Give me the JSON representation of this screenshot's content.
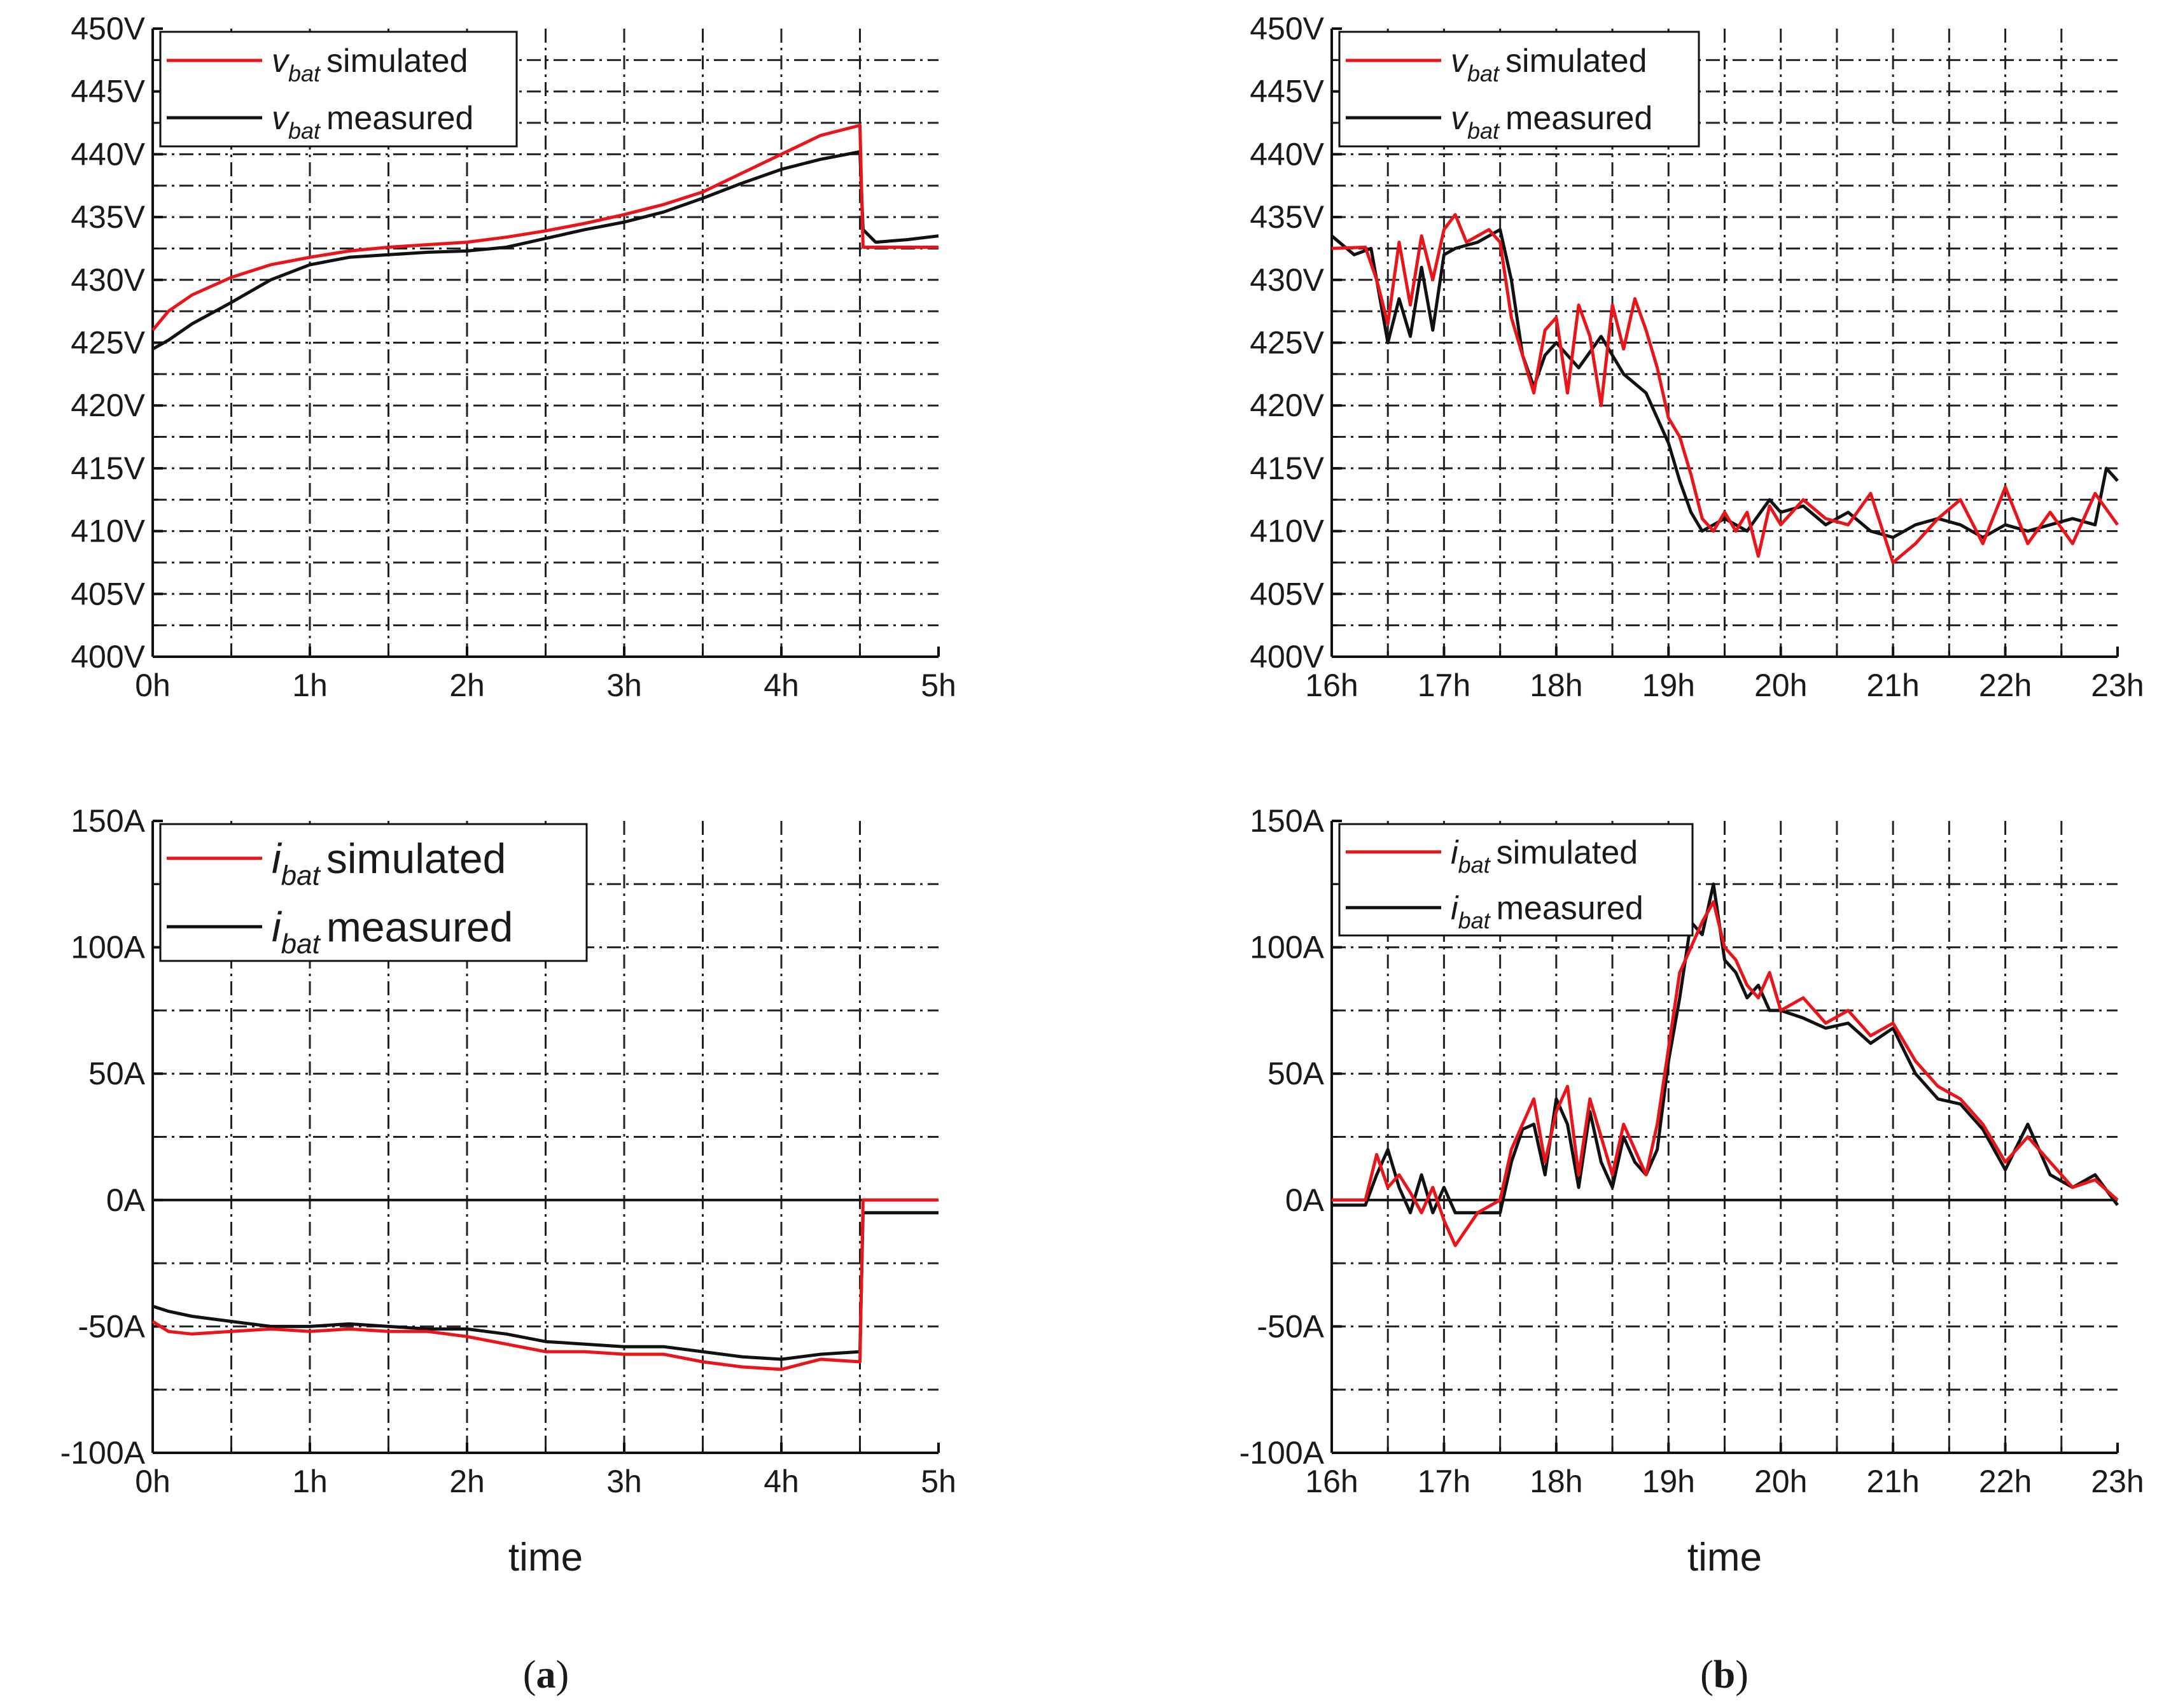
{
  "colors": {
    "simulated": "#e8161b",
    "measured": "#111111",
    "grid": "#222222",
    "axis": "#111111",
    "background": "#ffffff"
  },
  "captions": {
    "a": {
      "open": "(",
      "letter": "a",
      "close": ")"
    },
    "b": {
      "open": "(",
      "letter": "b",
      "close": ")"
    }
  },
  "chart_data": [
    {
      "id": "voltage_a",
      "type": "line",
      "panel": "a",
      "xlabel": "",
      "ylabel": "",
      "xlim": [
        0,
        5
      ],
      "ylim": [
        400,
        450
      ],
      "x_ticks": [
        0,
        1,
        2,
        3,
        4,
        5
      ],
      "x_tick_labels": [
        "0h",
        "1h",
        "2h",
        "3h",
        "4h",
        "5h"
      ],
      "y_ticks": [
        400,
        405,
        410,
        415,
        420,
        425,
        430,
        435,
        440,
        445,
        450
      ],
      "y_tick_labels": [
        "400V",
        "405V",
        "410V",
        "415V",
        "420V",
        "425V",
        "430V",
        "435V",
        "440V",
        "445V",
        "450V"
      ],
      "zero_line": null,
      "grid": true,
      "legend_position": "top-left",
      "series": [
        {
          "name": "simulated",
          "legend_var": "v",
          "legend_sub": "bat",
          "legend_label": "simulated",
          "color": "#e8161b",
          "x": [
            0,
            0.1,
            0.25,
            0.5,
            0.75,
            1.0,
            1.25,
            1.5,
            1.75,
            2.0,
            2.25,
            2.5,
            2.75,
            3.0,
            3.25,
            3.5,
            3.75,
            4.0,
            4.25,
            4.5,
            4.52,
            4.6,
            5.0
          ],
          "values": [
            426.0,
            427.5,
            428.8,
            430.2,
            431.2,
            431.8,
            432.3,
            432.6,
            432.8,
            433.0,
            433.4,
            433.9,
            434.5,
            435.2,
            436.0,
            437.0,
            438.5,
            440.0,
            441.5,
            442.3,
            432.6,
            432.6,
            432.6
          ]
        },
        {
          "name": "measured",
          "legend_var": "v",
          "legend_sub": "bat",
          "legend_label": "measured",
          "color": "#111111",
          "x": [
            0,
            0.1,
            0.25,
            0.5,
            0.75,
            1.0,
            1.25,
            1.5,
            1.75,
            2.0,
            2.25,
            2.5,
            2.75,
            3.0,
            3.25,
            3.5,
            3.75,
            4.0,
            4.25,
            4.5,
            4.52,
            4.6,
            4.8,
            5.0
          ],
          "values": [
            424.5,
            425.2,
            426.5,
            428.2,
            430.0,
            431.2,
            431.8,
            432.0,
            432.2,
            432.3,
            432.6,
            433.3,
            434.0,
            434.6,
            435.4,
            436.5,
            437.7,
            438.8,
            439.6,
            440.2,
            434.0,
            433.0,
            433.2,
            433.5
          ]
        }
      ]
    },
    {
      "id": "voltage_b",
      "type": "line",
      "panel": "b",
      "xlabel": "",
      "ylabel": "",
      "xlim": [
        16,
        23
      ],
      "ylim": [
        400,
        450
      ],
      "x_ticks": [
        16,
        17,
        18,
        19,
        20,
        21,
        22,
        23
      ],
      "x_tick_labels": [
        "16h",
        "17h",
        "18h",
        "19h",
        "20h",
        "21h",
        "22h",
        "23h"
      ],
      "y_ticks": [
        400,
        405,
        410,
        415,
        420,
        425,
        430,
        435,
        440,
        445,
        450
      ],
      "y_tick_labels": [
        "400V",
        "405V",
        "410V",
        "415V",
        "420V",
        "425V",
        "430V",
        "435V",
        "440V",
        "445V",
        "450V"
      ],
      "zero_line": null,
      "grid": true,
      "legend_position": "top-left",
      "series": [
        {
          "name": "simulated",
          "legend_var": "v",
          "legend_sub": "bat",
          "legend_label": "simulated",
          "color": "#e8161b",
          "x": [
            16,
            16.3,
            16.4,
            16.5,
            16.6,
            16.7,
            16.8,
            16.9,
            17.0,
            17.1,
            17.2,
            17.4,
            17.5,
            17.6,
            17.7,
            17.8,
            17.9,
            18.0,
            18.1,
            18.2,
            18.3,
            18.4,
            18.5,
            18.6,
            18.7,
            18.8,
            18.9,
            19.0,
            19.1,
            19.2,
            19.3,
            19.4,
            19.5,
            19.6,
            19.7,
            19.8,
            19.9,
            20.0,
            20.2,
            20.4,
            20.6,
            20.8,
            21.0,
            21.2,
            21.4,
            21.6,
            21.8,
            22.0,
            22.2,
            22.4,
            22.6,
            22.8,
            23.0
          ],
          "values": [
            432.5,
            432.6,
            430.0,
            426.5,
            433.0,
            428.0,
            433.5,
            430.0,
            434.0,
            435.2,
            433.0,
            434.0,
            433.0,
            427.0,
            424.0,
            421.0,
            426.0,
            427.0,
            421.0,
            428.0,
            425.5,
            420.0,
            428.0,
            424.5,
            428.5,
            426.0,
            423.0,
            419.0,
            417.5,
            414.5,
            411.0,
            410.0,
            411.5,
            410.0,
            411.5,
            408.0,
            412.0,
            410.5,
            412.5,
            411.0,
            410.5,
            413.0,
            407.5,
            409.0,
            411.0,
            412.5,
            409.0,
            413.5,
            409.0,
            411.5,
            409.0,
            413.0,
            410.5
          ]
        },
        {
          "name": "measured",
          "legend_var": "v",
          "legend_sub": "bat",
          "legend_label": "measured",
          "color": "#111111",
          "x": [
            16,
            16.2,
            16.35,
            16.5,
            16.6,
            16.7,
            16.8,
            16.9,
            17.0,
            17.1,
            17.3,
            17.5,
            17.6,
            17.7,
            17.8,
            17.9,
            18.0,
            18.2,
            18.4,
            18.6,
            18.8,
            18.9,
            19.0,
            19.1,
            19.2,
            19.3,
            19.4,
            19.5,
            19.7,
            19.9,
            20.0,
            20.2,
            20.4,
            20.6,
            20.8,
            21.0,
            21.2,
            21.4,
            21.6,
            21.8,
            22.0,
            22.2,
            22.4,
            22.6,
            22.8,
            22.9,
            23.0
          ],
          "values": [
            433.5,
            432.0,
            432.5,
            425.0,
            428.5,
            425.5,
            431.0,
            426.0,
            432.0,
            432.5,
            433.0,
            434.0,
            430.0,
            424.0,
            421.5,
            424.0,
            425.0,
            423.0,
            425.5,
            422.5,
            421.0,
            419.0,
            417.0,
            414.0,
            411.5,
            410.0,
            410.5,
            411.0,
            410.0,
            412.5,
            411.5,
            412.0,
            410.5,
            411.5,
            410.0,
            409.5,
            410.5,
            411.0,
            410.5,
            409.5,
            410.5,
            410.0,
            410.5,
            411.0,
            410.5,
            415.0,
            414.0
          ]
        }
      ]
    },
    {
      "id": "current_a",
      "type": "line",
      "panel": "a",
      "xlabel": "time",
      "ylabel": "",
      "xlim": [
        0,
        5
      ],
      "ylim": [
        -100,
        150
      ],
      "x_ticks": [
        0,
        1,
        2,
        3,
        4,
        5
      ],
      "x_tick_labels": [
        "0h",
        "1h",
        "2h",
        "3h",
        "4h",
        "5h"
      ],
      "y_ticks": [
        -100,
        -50,
        0,
        50,
        100,
        150
      ],
      "y_tick_labels": [
        "-100A",
        "-50A",
        "0A",
        "50A",
        "100A",
        "150A"
      ],
      "zero_line": 0,
      "grid": true,
      "legend_position": "top-left",
      "series": [
        {
          "name": "simulated",
          "legend_var": "i",
          "legend_sub": "bat",
          "legend_label": "simulated",
          "color": "#e8161b",
          "x": [
            0,
            0.1,
            0.25,
            0.5,
            0.75,
            1.0,
            1.25,
            1.5,
            1.75,
            2.0,
            2.25,
            2.5,
            2.75,
            3.0,
            3.25,
            3.5,
            3.75,
            4.0,
            4.25,
            4.5,
            4.52,
            4.6,
            5.0
          ],
          "values": [
            -48,
            -52,
            -53,
            -52,
            -51,
            -52,
            -51,
            -52,
            -52,
            -54,
            -57,
            -60,
            -60,
            -61,
            -61,
            -64,
            -66,
            -67,
            -63,
            -64,
            0,
            0,
            0
          ]
        },
        {
          "name": "measured",
          "legend_var": "i",
          "legend_sub": "bat",
          "legend_label": "measured",
          "color": "#111111",
          "x": [
            0,
            0.1,
            0.25,
            0.5,
            0.75,
            1.0,
            1.25,
            1.5,
            1.75,
            2.0,
            2.25,
            2.5,
            2.75,
            3.0,
            3.25,
            3.5,
            3.75,
            4.0,
            4.25,
            4.5,
            4.52,
            4.6,
            5.0
          ],
          "values": [
            -42,
            -44,
            -46,
            -48,
            -50,
            -50,
            -49,
            -50,
            -51,
            -51,
            -53,
            -56,
            -57,
            -58,
            -58,
            -60,
            -62,
            -63,
            -61,
            -60,
            -5,
            -5,
            -5
          ]
        }
      ]
    },
    {
      "id": "current_b",
      "type": "line",
      "panel": "b",
      "xlabel": "time",
      "ylabel": "",
      "xlim": [
        16,
        23
      ],
      "ylim": [
        -100,
        150
      ],
      "x_ticks": [
        16,
        17,
        18,
        19,
        20,
        21,
        22,
        23
      ],
      "x_tick_labels": [
        "16h",
        "17h",
        "18h",
        "19h",
        "20h",
        "21h",
        "22h",
        "23h"
      ],
      "y_ticks": [
        -100,
        -50,
        0,
        50,
        100,
        150
      ],
      "y_tick_labels": [
        "-100A",
        "-50A",
        "0A",
        "50A",
        "100A",
        "150A"
      ],
      "zero_line": 0,
      "grid": true,
      "legend_position": "top-left",
      "series": [
        {
          "name": "simulated",
          "legend_var": "i",
          "legend_sub": "bat",
          "legend_label": "simulated",
          "color": "#e8161b",
          "x": [
            16,
            16.3,
            16.4,
            16.5,
            16.6,
            16.7,
            16.8,
            16.9,
            17.0,
            17.1,
            17.3,
            17.5,
            17.6,
            17.7,
            17.8,
            17.9,
            18.0,
            18.1,
            18.2,
            18.3,
            18.4,
            18.5,
            18.6,
            18.7,
            18.8,
            18.9,
            19.0,
            19.1,
            19.2,
            19.3,
            19.4,
            19.5,
            19.6,
            19.7,
            19.8,
            19.9,
            20.0,
            20.2,
            20.4,
            20.6,
            20.8,
            21.0,
            21.2,
            21.4,
            21.6,
            21.8,
            22.0,
            22.2,
            22.4,
            22.6,
            22.8,
            23.0
          ],
          "values": [
            0,
            0,
            18,
            5,
            10,
            3,
            -5,
            5,
            -8,
            -18,
            -5,
            0,
            20,
            30,
            40,
            15,
            35,
            45,
            10,
            40,
            25,
            10,
            30,
            20,
            10,
            30,
            60,
            90,
            100,
            110,
            118,
            100,
            95,
            85,
            80,
            90,
            75,
            80,
            70,
            75,
            65,
            70,
            55,
            45,
            40,
            30,
            15,
            25,
            15,
            5,
            8,
            0
          ]
        },
        {
          "name": "measured",
          "legend_var": "i",
          "legend_sub": "bat",
          "legend_label": "measured",
          "color": "#111111",
          "x": [
            16,
            16.3,
            16.4,
            16.5,
            16.6,
            16.7,
            16.8,
            16.9,
            17.0,
            17.1,
            17.3,
            17.5,
            17.6,
            17.7,
            17.8,
            17.9,
            18.0,
            18.1,
            18.2,
            18.3,
            18.4,
            18.5,
            18.6,
            18.7,
            18.8,
            18.9,
            19.0,
            19.1,
            19.2,
            19.3,
            19.4,
            19.5,
            19.6,
            19.7,
            19.8,
            19.9,
            20.0,
            20.2,
            20.4,
            20.6,
            20.8,
            21.0,
            21.2,
            21.4,
            21.6,
            21.8,
            22.0,
            22.2,
            22.4,
            22.6,
            22.8,
            23.0
          ],
          "values": [
            -2,
            -2,
            10,
            20,
            5,
            -5,
            10,
            -5,
            5,
            -5,
            -5,
            -5,
            15,
            28,
            30,
            10,
            40,
            30,
            5,
            35,
            15,
            5,
            25,
            15,
            10,
            20,
            55,
            80,
            110,
            105,
            125,
            95,
            90,
            80,
            85,
            75,
            75,
            72,
            68,
            70,
            62,
            68,
            50,
            40,
            38,
            28,
            12,
            30,
            10,
            5,
            10,
            -2
          ]
        }
      ]
    }
  ]
}
